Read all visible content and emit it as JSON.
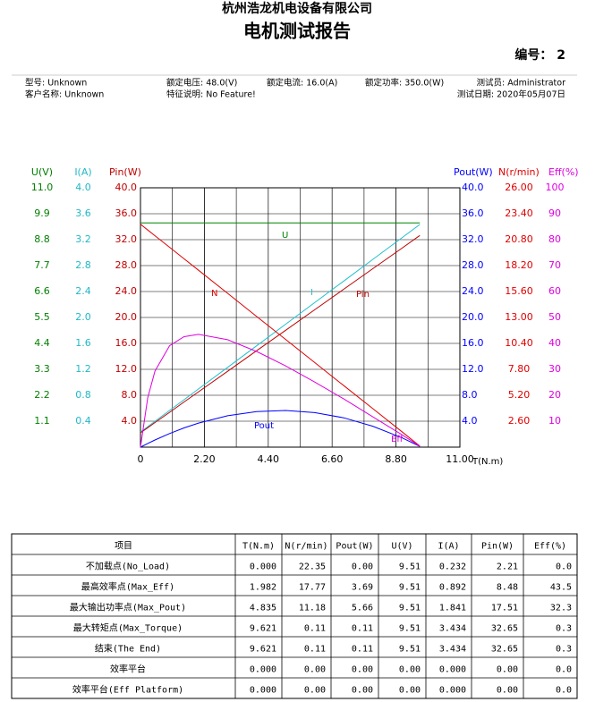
{
  "header": {
    "company": "杭州浩龙机电设备有限公司",
    "title": "电机测试报告",
    "number": "编号： 2"
  },
  "info": {
    "row1": [
      "型号: Unknown",
      "额定电压: 48.0(V)",
      "额定电流: 16.0(A)",
      "额定功率: 350.0(W)",
      "测试员: Administrator"
    ],
    "row2": [
      "客户名称: Unknown",
      "特征说明: No Feature!",
      "测试日期: 2020年05月07日"
    ]
  },
  "chart_data": {
    "type": "line",
    "x_label": "T(N.m)",
    "xlim": [
      0,
      11
    ],
    "xticks": [
      0,
      {
        "value": 2.2,
        "label": "2.20"
      },
      {
        "value": 4.4,
        "label": "4.40"
      },
      {
        "value": 6.6,
        "label": "6.60"
      },
      {
        "value": 8.8,
        "label": "8.80"
      },
      {
        "value": 11,
        "label": "11.00"
      }
    ],
    "grid": true,
    "axes": {
      "u": {
        "label": "U(V)",
        "color": "#008000",
        "ylim": [
          0,
          11
        ],
        "yticks": [
          {
            "value": 11,
            "label": "11.0"
          },
          9.9,
          8.8,
          7.7,
          6.6,
          5.5,
          4.4,
          3.3,
          2.2,
          1.1
        ]
      },
      "i": {
        "label": "I(A)",
        "color": "#20b8c8",
        "ylim": [
          0,
          4
        ],
        "yticks": [
          {
            "value": 4,
            "label": "4.0"
          },
          3.6,
          3.2,
          2.8,
          2.4,
          {
            "value": 2,
            "label": "2.0"
          },
          1.6,
          1.2,
          0.8,
          0.4
        ]
      },
      "pin": {
        "label": "Pin(W)",
        "color": "#c00000",
        "ylim": [
          0,
          40
        ],
        "yticks": [
          {
            "value": 40,
            "label": "40.0"
          },
          {
            "value": 36,
            "label": "36.0"
          },
          {
            "value": 32,
            "label": "32.0"
          },
          {
            "value": 28,
            "label": "28.0"
          },
          {
            "value": 24,
            "label": "24.0"
          },
          {
            "value": 20,
            "label": "20.0"
          },
          {
            "value": 16,
            "label": "16.0"
          },
          {
            "value": 12,
            "label": "12.0"
          },
          {
            "value": 8,
            "label": "8.0"
          },
          {
            "value": 4,
            "label": "4.0"
          }
        ]
      },
      "pout": {
        "label": "Pout(W)",
        "color": "#0000ff",
        "ylim": [
          0,
          40
        ],
        "yticks": [
          {
            "value": 40,
            "label": "40.0"
          },
          {
            "value": 36,
            "label": "36.0"
          },
          {
            "value": 32,
            "label": "32.0"
          },
          {
            "value": 28,
            "label": "28.0"
          },
          {
            "value": 24,
            "label": "24.0"
          },
          {
            "value": 20,
            "label": "20.0"
          },
          {
            "value": 16,
            "label": "16.0"
          },
          {
            "value": 12,
            "label": "12.0"
          },
          {
            "value": 8,
            "label": "8.0"
          },
          {
            "value": 4,
            "label": "4.0"
          }
        ]
      },
      "n": {
        "label": "N(r/min)",
        "color": "#e00000",
        "ylim": [
          0,
          26
        ],
        "yticks": [
          {
            "value": 26,
            "label": "26.00"
          },
          {
            "value": 23.4,
            "label": "23.40"
          },
          {
            "value": 20.8,
            "label": "20.80"
          },
          {
            "value": 18.2,
            "label": "18.20"
          },
          {
            "value": 15.6,
            "label": "15.60"
          },
          {
            "value": 13,
            "label": "13.00"
          },
          {
            "value": 10.4,
            "label": "10.40"
          },
          {
            "value": 7.8,
            "label": "7.80"
          },
          {
            "value": 5.2,
            "label": "5.20"
          },
          {
            "value": 2.6,
            "label": "2.60"
          }
        ]
      },
      "eff": {
        "label": "Eff(%)",
        "color": "#e000e0",
        "ylim": [
          0,
          100
        ],
        "yticks": [
          100,
          90,
          80,
          70,
          60,
          50,
          40,
          30,
          20,
          10
        ]
      }
    },
    "x": [
      0,
      0.25,
      0.5,
      1,
      1.5,
      2,
      3,
      4,
      5,
      6,
      7,
      8,
      9,
      9.621
    ],
    "series": [
      {
        "name": "U",
        "axis": "u",
        "color": "#008000",
        "values": [
          9.51,
          9.51,
          9.51,
          9.51,
          9.51,
          9.51,
          9.51,
          9.51,
          9.51,
          9.51,
          9.51,
          9.51,
          9.51,
          9.51
        ]
      },
      {
        "name": "I",
        "axis": "i",
        "color": "#20c0d0",
        "values": [
          0.232,
          0.315,
          0.398,
          0.565,
          0.731,
          0.898,
          1.23,
          1.563,
          1.896,
          2.229,
          2.562,
          2.895,
          3.227,
          3.434
        ]
      },
      {
        "name": "N",
        "axis": "n",
        "color": "#e00000",
        "values": [
          22.35,
          21.77,
          21.19,
          20.04,
          18.88,
          17.73,
          15.42,
          13.1,
          10.79,
          8.48,
          6.17,
          3.86,
          1.55,
          0.11
        ]
      },
      {
        "name": "Pin",
        "axis": "pin",
        "color": "#c00000",
        "values": [
          2.21,
          3.0,
          3.79,
          5.37,
          6.96,
          8.54,
          11.7,
          14.87,
          18.03,
          21.19,
          24.36,
          27.52,
          30.68,
          32.65
        ]
      },
      {
        "name": "Pout",
        "axis": "pout",
        "color": "#0000ff",
        "values": [
          0,
          0.57,
          1.11,
          2.1,
          2.97,
          3.71,
          4.84,
          5.49,
          5.65,
          5.33,
          4.52,
          3.23,
          1.46,
          0.11
        ]
      },
      {
        "name": "Eff",
        "axis": "eff",
        "color": "#e000e0",
        "values": [
          0,
          19.0,
          29.3,
          39.1,
          42.6,
          43.5,
          41.4,
          36.9,
          31.3,
          25.1,
          18.6,
          11.7,
          4.8,
          0.3
        ]
      }
    ]
  },
  "table": {
    "columns": [
      "项目",
      "T(N.m)",
      "N(r/min)",
      "Pout(W)",
      "U(V)",
      "I(A)",
      "Pin(W)",
      "Eff(%)"
    ],
    "rows": [
      [
        "不加载点(No_Load)",
        "0.000",
        "22.35",
        "0.00",
        "9.51",
        "0.232",
        "2.21",
        "0.0"
      ],
      [
        "最高效率点(Max_Eff)",
        "1.982",
        "17.77",
        "3.69",
        "9.51",
        "0.892",
        "8.48",
        "43.5"
      ],
      [
        "最大输出功率点(Max_Pout)",
        "4.835",
        "11.18",
        "5.66",
        "9.51",
        "1.841",
        "17.51",
        "32.3"
      ],
      [
        "最大转矩点(Max_Torque)",
        "9.621",
        "0.11",
        "0.11",
        "9.51",
        "3.434",
        "32.65",
        "0.3"
      ],
      [
        "结束(The End)",
        "9.621",
        "0.11",
        "0.11",
        "9.51",
        "3.434",
        "32.65",
        "0.3"
      ],
      [
        "效率平台",
        "0.000",
        "0.00",
        "0.00",
        "0.00",
        "0.000",
        "0.00",
        "0.0"
      ],
      [
        "效率平台(Eff Platform)",
        "0.000",
        "0.00",
        "0.00",
        "0.00",
        "0.000",
        "0.00",
        "0.0"
      ]
    ]
  }
}
